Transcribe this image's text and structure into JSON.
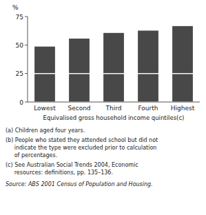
{
  "chart_data": {
    "type": "bar",
    "stacked": true,
    "xlabel": "Equivalised gross household income quintiles(c)",
    "ylabel": "%",
    "categories": [
      "Lowest",
      "Second",
      "Third",
      "Fourth",
      "Highest"
    ],
    "series": [
      {
        "color": "#484848",
        "values": [
          25,
          25,
          25,
          25,
          25
        ]
      },
      {
        "color": "#484848",
        "values": [
          24,
          31,
          36,
          38,
          42
        ]
      }
    ],
    "ylim": [
      0,
      75
    ],
    "yticks": [
      0,
      25,
      50,
      75
    ],
    "grid": false,
    "annotations": [
      "(a) Children aged four years.",
      "(b) People who stated they attended school but did not",
      "     indicate the type were excluded prior to calculation",
      "     of percentages.",
      "(c) See Australian Social Trends 2004, Economic",
      "     resources: definitions, pp. 135–136.",
      "Source: ABS 2001 Census of Population and Housing."
    ]
  }
}
